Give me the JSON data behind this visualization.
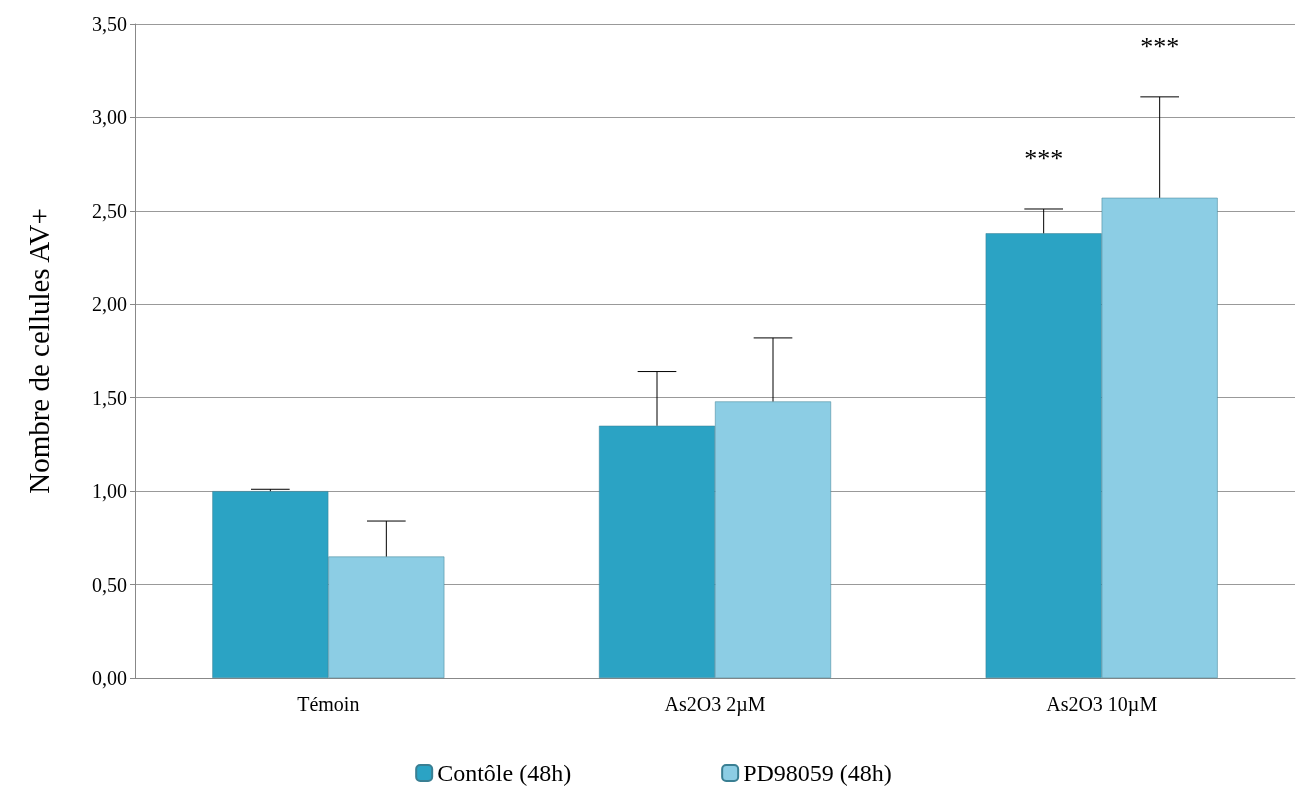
{
  "chart_data": {
    "type": "bar",
    "ylabel": "Nombre de cellules AV+",
    "categories": [
      "Témoin",
      "As2O3 2µM",
      "As2O3 10µM"
    ],
    "series": [
      {
        "name": "Contôle (48h)",
        "color": "#2ba3c4",
        "values": [
          1.0,
          1.35,
          2.38
        ],
        "errors": [
          [
            1.0,
            1.01
          ],
          [
            1.35,
            1.64
          ],
          [
            2.38,
            2.51
          ]
        ]
      },
      {
        "name": "PD98059 (48h)",
        "color": "#8ccde4",
        "values": [
          0.65,
          1.48,
          2.57
        ],
        "errors": [
          [
            0.65,
            0.84
          ],
          [
            1.48,
            1.82
          ],
          [
            2.57,
            3.11
          ]
        ]
      }
    ],
    "ylim": [
      0,
      3.5
    ],
    "yticks": [
      {
        "value": 0,
        "label": "0,00"
      },
      {
        "value": 0.5,
        "label": "0,50"
      },
      {
        "value": 1,
        "label": "1,00"
      },
      {
        "value": 1.5,
        "label": "1,50"
      },
      {
        "value": 2,
        "label": "2,00"
      },
      {
        "value": 2.5,
        "label": "2,50"
      },
      {
        "value": 3,
        "label": "3,00"
      },
      {
        "value": 3.5,
        "label": "3,50"
      }
    ],
    "annotations": [
      "***",
      "***"
    ],
    "grid": "y",
    "legend": "bottom"
  }
}
